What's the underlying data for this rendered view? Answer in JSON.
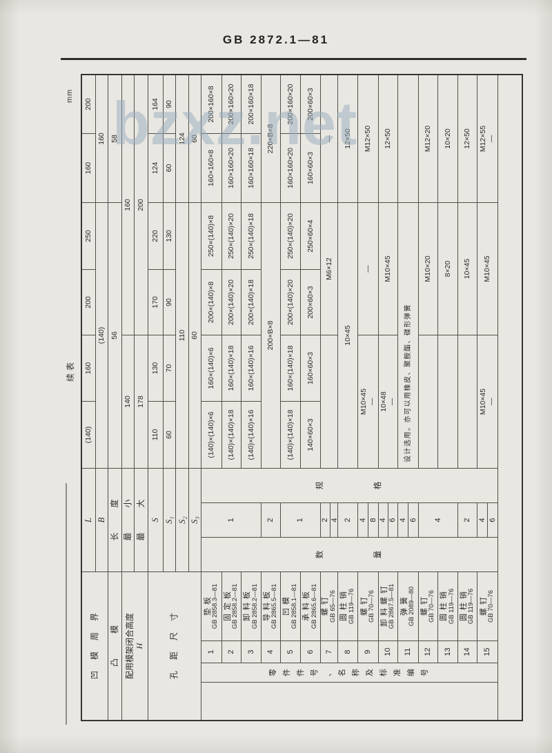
{
  "page": {
    "header_title": "GB 2872.1—81",
    "continue_label": "续表",
    "unit_label": "mm",
    "watermark": "bzxz.net",
    "paper_color": "#e9e7e2",
    "ink_color": "#2c2b27"
  },
  "table": {
    "title_semantics": "典型组合尺寸及零件表 (rotated 90°, landscape table on portrait page)",
    "die_columns": [
      "(140)×(140)",
      "160×(140)",
      "200×(140)",
      "250×(140)",
      "160×160",
      "200×160"
    ],
    "note": "设计选用。亦可以用橡皮、聚胺酯、碟形弹簧",
    "cells": [
      {
        "r": 1,
        "c": 1,
        "rs": 2,
        "cs": 4,
        "t": "凹模周界",
        "k": "lbl ls16",
        "n": "row-label-die-perimeter"
      },
      {
        "r": 1,
        "c": 5,
        "cs": 3,
        "t": "L",
        "k": "it",
        "n": "row-label-L"
      },
      {
        "r": 2,
        "c": 5,
        "cs": 3,
        "t": "B",
        "k": "it",
        "n": "row-label-B"
      },
      {
        "r": 3,
        "c": 1,
        "cs": 4,
        "t": "凸模",
        "k": "lbl ls36",
        "n": "row-label-punch"
      },
      {
        "r": 3,
        "c": 5,
        "cs": 3,
        "t": "长度",
        "k": "lbl ls36",
        "n": "row-label-length"
      },
      {
        "r": 4,
        "c": 1,
        "rs": 2,
        "cs": 4,
        "lines": [
          "配用模架闭合高度",
          "H"
        ],
        "k": "lbl hh",
        "n": "row-label-die-set-height"
      },
      {
        "r": 4,
        "c": 5,
        "cs": 3,
        "t": "最小",
        "k": "lbl ls36",
        "n": "row-label-min"
      },
      {
        "r": 5,
        "c": 5,
        "cs": 3,
        "t": "最大",
        "k": "lbl ls36",
        "n": "row-label-max"
      },
      {
        "r": 6,
        "c": 1,
        "rs": 4,
        "cs": 4,
        "t": "孔距尺寸",
        "k": "lbl ls16",
        "n": "row-label-hole-distance"
      },
      {
        "r": 6,
        "c": 5,
        "cs": 3,
        "t": "S",
        "k": "it",
        "n": "row-label-S"
      },
      {
        "r": 7,
        "c": 5,
        "cs": 3,
        "t": "S₁",
        "k": "it",
        "n": "row-label-S1"
      },
      {
        "r": 8,
        "c": 5,
        "cs": 3,
        "t": "S₂",
        "k": "it",
        "n": "row-label-S2"
      },
      {
        "r": 9,
        "c": 5,
        "cs": 3,
        "t": "S₃",
        "k": "it",
        "n": "row-label-S3"
      },
      {
        "r": 1,
        "c": 8,
        "t": "(140)"
      },
      {
        "r": 1,
        "c": 9,
        "t": "160"
      },
      {
        "r": 1,
        "c": 10,
        "t": "200"
      },
      {
        "r": 1,
        "c": 11,
        "t": "250"
      },
      {
        "r": 1,
        "c": 12,
        "t": "160"
      },
      {
        "r": 1,
        "c": 13,
        "t": "200"
      },
      {
        "r": 2,
        "c": 8,
        "cs": 4,
        "t": "(140)"
      },
      {
        "r": 2,
        "c": 12,
        "cs": 2,
        "t": "160"
      },
      {
        "r": 3,
        "c": 8,
        "cs": 4,
        "t": "56"
      },
      {
        "r": 3,
        "c": 12,
        "cs": 2,
        "t": "58"
      },
      {
        "r": 4,
        "c": 8,
        "cs": 2,
        "t": "140"
      },
      {
        "r": 4,
        "c": 10,
        "cs": 4,
        "t": "160"
      },
      {
        "r": 5,
        "c": 8,
        "cs": 2,
        "t": "178"
      },
      {
        "r": 5,
        "c": 10,
        "cs": 4,
        "t": "200"
      },
      {
        "r": 6,
        "c": 8,
        "t": "110"
      },
      {
        "r": 6,
        "c": 9,
        "t": "130"
      },
      {
        "r": 6,
        "c": 10,
        "t": "170"
      },
      {
        "r": 6,
        "c": 11,
        "t": "220"
      },
      {
        "r": 6,
        "c": 12,
        "t": "124"
      },
      {
        "r": 6,
        "c": 13,
        "t": "164"
      },
      {
        "r": 7,
        "c": 8,
        "t": "60"
      },
      {
        "r": 7,
        "c": 9,
        "t": "70"
      },
      {
        "r": 7,
        "c": 10,
        "t": "90"
      },
      {
        "r": 7,
        "c": 11,
        "t": "130"
      },
      {
        "r": 7,
        "c": 12,
        "t": "60"
      },
      {
        "r": 7,
        "c": 13,
        "t": "90"
      },
      {
        "r": 8,
        "c": 8,
        "cs": 4,
        "t": "110"
      },
      {
        "r": 8,
        "c": 12,
        "cs": 2,
        "t": "124"
      },
      {
        "r": 9,
        "c": 8,
        "cs": 4,
        "t": "60"
      },
      {
        "r": 9,
        "c": 12,
        "cs": 2,
        "t": "60"
      },
      {
        "r": 10,
        "c": 1,
        "rs": 15,
        "t": "",
        "n": "left-margin-cell"
      },
      {
        "r": 10,
        "c": 2,
        "rs": 15,
        "t": "零件件号、名称及标准编号",
        "k": "vstack",
        "n": "parts-column-label"
      },
      {
        "r": 10,
        "c": 5,
        "rs": 15,
        "t": "数量",
        "k": "vspread",
        "n": "quantity-column-label"
      },
      {
        "r": 10,
        "c": 7,
        "rs": 15,
        "t": "规格",
        "k": "vspread",
        "n": "spec-column-label"
      },
      {
        "r": 10,
        "c": 3,
        "t": "1",
        "k": "num",
        "n": "part-number"
      },
      {
        "r": 10,
        "c": 4,
        "lines": [
          "垫板",
          "GB 2858.3—81"
        ],
        "k": "pname",
        "n": "part-name"
      },
      {
        "r": 11,
        "c": 3,
        "t": "2",
        "k": "num",
        "n": "part-number"
      },
      {
        "r": 11,
        "c": 4,
        "lines": [
          "固定板",
          "GB 2858.2—81"
        ],
        "k": "pname",
        "n": "part-name"
      },
      {
        "r": 12,
        "c": 3,
        "t": "3",
        "k": "num",
        "n": "part-number"
      },
      {
        "r": 12,
        "c": 4,
        "lines": [
          "卸料板",
          "GB 2858.2—81"
        ],
        "k": "pname",
        "n": "part-name"
      },
      {
        "r": 13,
        "c": 3,
        "t": "4",
        "k": "num",
        "n": "part-number"
      },
      {
        "r": 13,
        "c": 4,
        "lines": [
          "导料板",
          "GB 2865.5—81"
        ],
        "k": "pname",
        "n": "part-name"
      },
      {
        "r": 14,
        "c": 3,
        "t": "5",
        "k": "num",
        "n": "part-number"
      },
      {
        "r": 14,
        "c": 4,
        "lines": [
          "凹模",
          "GB 2858.1—81"
        ],
        "k": "pname",
        "n": "part-name"
      },
      {
        "r": 15,
        "c": 3,
        "t": "6",
        "k": "num",
        "n": "part-number"
      },
      {
        "r": 15,
        "c": 4,
        "lines": [
          "承料板",
          "GB 2865.6—81"
        ],
        "k": "pname",
        "n": "part-name"
      },
      {
        "r": 16,
        "c": 3,
        "t": "7",
        "k": "num",
        "n": "part-number"
      },
      {
        "r": 16,
        "c": 4,
        "lines": [
          "螺钉",
          "GB 65—76"
        ],
        "k": "pname",
        "n": "part-name"
      },
      {
        "r": 17,
        "c": 3,
        "t": "8",
        "k": "num",
        "n": "part-number"
      },
      {
        "r": 17,
        "c": 4,
        "lines": [
          "圆柱销",
          "GB 119—76"
        ],
        "k": "pname",
        "n": "part-name"
      },
      {
        "r": 18,
        "c": 3,
        "t": "9",
        "k": "num",
        "n": "part-number"
      },
      {
        "r": 18,
        "c": 4,
        "lines": [
          "螺钉",
          "GB 70—76"
        ],
        "k": "pname",
        "n": "part-name"
      },
      {
        "r": 19,
        "c": 3,
        "t": "10",
        "k": "num",
        "n": "part-number"
      },
      {
        "r": 19,
        "c": 4,
        "lines": [
          "卸料螺钉",
          "GB 2867.5—81"
        ],
        "k": "pname",
        "n": "part-name"
      },
      {
        "r": 20,
        "c": 3,
        "t": "11",
        "k": "num",
        "n": "part-number"
      },
      {
        "r": 20,
        "c": 4,
        "lines": [
          "弹簧",
          "GB 2089—80"
        ],
        "k": "pname",
        "n": "part-name"
      },
      {
        "r": 21,
        "c": 3,
        "t": "12",
        "k": "num",
        "n": "part-number"
      },
      {
        "r": 21,
        "c": 4,
        "lines": [
          "螺钉",
          "GB 70—76"
        ],
        "k": "pname",
        "n": "part-name"
      },
      {
        "r": 22,
        "c": 3,
        "t": "13",
        "k": "num",
        "n": "part-number"
      },
      {
        "r": 22,
        "c": 4,
        "lines": [
          "圆柱销",
          "GB 119—76"
        ],
        "k": "pname",
        "n": "part-name"
      },
      {
        "r": 23,
        "c": 3,
        "t": "14",
        "k": "num",
        "n": "part-number"
      },
      {
        "r": 23,
        "c": 4,
        "lines": [
          "圆柱销",
          "GB 119—76"
        ],
        "k": "pname",
        "n": "part-name"
      },
      {
        "r": 24,
        "c": 3,
        "t": "15",
        "k": "num",
        "n": "part-number"
      },
      {
        "r": 24,
        "c": 4,
        "lines": [
          "螺钉",
          "GB 70—76"
        ],
        "k": "pname",
        "n": "part-name"
      },
      {
        "r": 10,
        "c": 6,
        "rs": 3,
        "t": "1",
        "k": "num",
        "n": "quantity-cell"
      },
      {
        "r": 13,
        "c": 6,
        "t": "2",
        "k": "num",
        "n": "quantity-cell"
      },
      {
        "r": 14,
        "c": 6,
        "rs": 2,
        "t": "1",
        "k": "num",
        "n": "quantity-cell"
      },
      {
        "r": 16,
        "c": 6,
        "split": [
          "2",
          "4"
        ],
        "n": "quantity-cell"
      },
      {
        "r": 17,
        "c": 6,
        "t": "2",
        "k": "num",
        "n": "quantity-cell"
      },
      {
        "r": 18,
        "c": 6,
        "split": [
          "4",
          "8"
        ],
        "n": "quantity-cell"
      },
      {
        "r": 19,
        "c": 6,
        "split": [
          "4",
          "6"
        ],
        "n": "quantity-cell"
      },
      {
        "r": 20,
        "c": 6,
        "split": [
          "4",
          "6"
        ],
        "n": "quantity-cell"
      },
      {
        "r": 21,
        "c": 6,
        "rs": 2,
        "t": "4",
        "k": "num",
        "n": "quantity-cell"
      },
      {
        "r": 23,
        "c": 6,
        "t": "2",
        "k": "num",
        "n": "quantity-cell"
      },
      {
        "r": 24,
        "c": 6,
        "split": [
          "4",
          "6"
        ],
        "n": "quantity-cell"
      },
      {
        "r": 10,
        "c": 8,
        "t": "(140)×(140)×6"
      },
      {
        "r": 10,
        "c": 9,
        "t": "160×(140)×6"
      },
      {
        "r": 10,
        "c": 10,
        "t": "200×(140)×8"
      },
      {
        "r": 10,
        "c": 11,
        "t": "250×(140)×8"
      },
      {
        "r": 10,
        "c": 12,
        "t": "160×160×8"
      },
      {
        "r": 10,
        "c": 13,
        "t": "200×160×8"
      },
      {
        "r": 11,
        "c": 8,
        "t": "(140)×(140)×18"
      },
      {
        "r": 11,
        "c": 9,
        "t": "160×(140)×18"
      },
      {
        "r": 11,
        "c": 10,
        "t": "200×(140)×20"
      },
      {
        "r": 11,
        "c": 11,
        "t": "250×(140)×20"
      },
      {
        "r": 11,
        "c": 12,
        "t": "160×160×20"
      },
      {
        "r": 11,
        "c": 13,
        "t": "200×160×20"
      },
      {
        "r": 12,
        "c": 8,
        "t": "(140)×(140)×16"
      },
      {
        "r": 12,
        "c": 9,
        "t": "160×(140)×16"
      },
      {
        "r": 12,
        "c": 10,
        "t": "200×(140)×18"
      },
      {
        "r": 12,
        "c": 11,
        "t": "250×(140)×18"
      },
      {
        "r": 12,
        "c": 12,
        "t": "160×160×18"
      },
      {
        "r": 12,
        "c": 13,
        "t": "200×160×18"
      },
      {
        "r": 13,
        "c": 8,
        "cs": 4,
        "t": "200×B×8"
      },
      {
        "r": 13,
        "c": 12,
        "cs": 2,
        "t": "220×B×8"
      },
      {
        "r": 14,
        "c": 8,
        "t": "(140)×(140)×18"
      },
      {
        "r": 14,
        "c": 9,
        "t": "160×(140)×18"
      },
      {
        "r": 14,
        "c": 10,
        "t": "200×(140)×20"
      },
      {
        "r": 14,
        "c": 11,
        "t": "250×(140)×20"
      },
      {
        "r": 14,
        "c": 12,
        "t": "160×160×20"
      },
      {
        "r": 14,
        "c": 13,
        "t": "200×160×20"
      },
      {
        "r": 15,
        "c": 8,
        "t": "140×60×3"
      },
      {
        "r": 15,
        "c": 9,
        "t": "160×60×3"
      },
      {
        "r": 15,
        "c": 10,
        "t": "200×60×3"
      },
      {
        "r": 15,
        "c": 11,
        "t": "250×60×4"
      },
      {
        "r": 15,
        "c": 12,
        "t": "160×60×3"
      },
      {
        "r": 15,
        "c": 13,
        "t": "200×60×3"
      },
      {
        "r": 16,
        "c": 8,
        "cs": 2,
        "t": ""
      },
      {
        "r": 16,
        "c": 10,
        "cs": 2,
        "t": "M6×12"
      },
      {
        "r": 16,
        "c": 12,
        "cs": 2,
        "t": "—"
      },
      {
        "r": 17,
        "c": 8,
        "cs": 4,
        "t": "10×45"
      },
      {
        "r": 17,
        "c": 12,
        "cs": 2,
        "t": "12×50"
      },
      {
        "r": 18,
        "c": 8,
        "cs": 2,
        "lines": [
          "M10×45",
          "—"
        ],
        "k": "lines2"
      },
      {
        "r": 18,
        "c": 10,
        "cs": 2,
        "t": "—"
      },
      {
        "r": 18,
        "c": 12,
        "cs": 2,
        "t": "M12×50"
      },
      {
        "r": 19,
        "c": 8,
        "cs": 2,
        "lines": [
          "10×48",
          "—"
        ],
        "k": "lines2"
      },
      {
        "r": 19,
        "c": 10,
        "cs": 2,
        "t": "M10×45"
      },
      {
        "r": 19,
        "c": 12,
        "cs": 2,
        "t": "12×50"
      },
      {
        "r": 20,
        "c": 8,
        "cs": 4,
        "t": "设计选用。亦可以用橡皮、聚胺酯、碟形弹簧",
        "k": "note",
        "n": "spring-note"
      },
      {
        "r": 20,
        "c": 12,
        "cs": 2,
        "t": ""
      },
      {
        "r": 21,
        "c": 8,
        "cs": 2,
        "t": ""
      },
      {
        "r": 21,
        "c": 10,
        "cs": 2,
        "t": "M10×20"
      },
      {
        "r": 21,
        "c": 12,
        "cs": 2,
        "t": "M12×20"
      },
      {
        "r": 22,
        "c": 8,
        "cs": 2,
        "t": ""
      },
      {
        "r": 22,
        "c": 10,
        "cs": 2,
        "t": "8×20"
      },
      {
        "r": 22,
        "c": 12,
        "cs": 2,
        "t": "10×20"
      },
      {
        "r": 23,
        "c": 8,
        "cs": 2,
        "t": ""
      },
      {
        "r": 23,
        "c": 10,
        "cs": 2,
        "t": "10×45"
      },
      {
        "r": 23,
        "c": 12,
        "cs": 2,
        "t": "12×50"
      },
      {
        "r": 24,
        "c": 8,
        "cs": 2,
        "lines": [
          "M10×45",
          "—"
        ],
        "k": "lines2"
      },
      {
        "r": 24,
        "c": 10,
        "cs": 2,
        "t": "M10×45"
      },
      {
        "r": 24,
        "c": 12,
        "cs": 2,
        "lines": [
          "M12×55",
          "—"
        ],
        "k": "lines2"
      },
      {
        "r": 25,
        "c": 1,
        "cs": 13,
        "t": "",
        "n": "empty-bottom-row"
      }
    ]
  }
}
